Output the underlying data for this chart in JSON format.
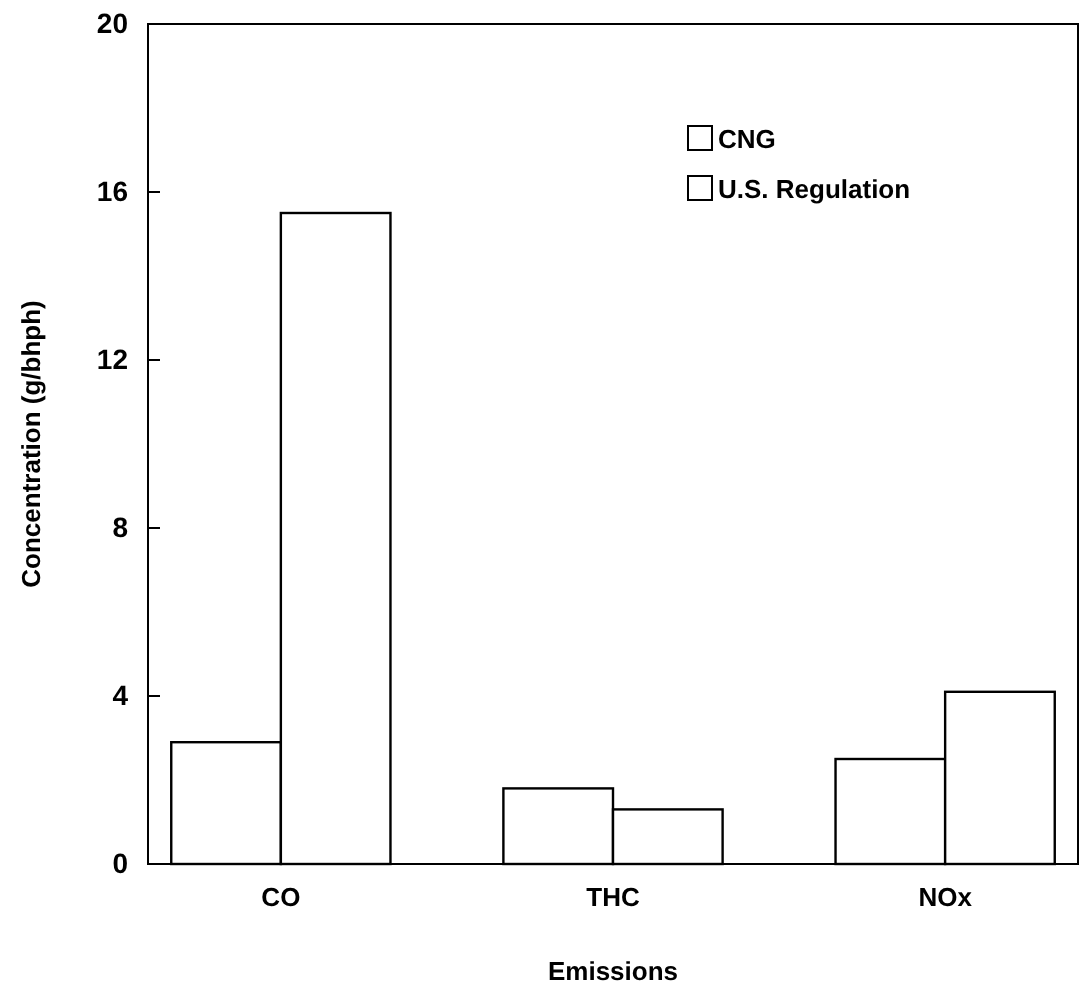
{
  "chart_data": {
    "type": "bar",
    "xlabel": "Emissions",
    "ylabel": "Concentration (g/bhph)",
    "categories": [
      "CO",
      "THC",
      "NOx"
    ],
    "series": [
      {
        "name": "CNG",
        "color": "#ffffff",
        "values": [
          2.9,
          1.8,
          2.5
        ]
      },
      {
        "name": "U.S. Regulation",
        "color": "#ffffff",
        "values": [
          15.5,
          1.3,
          4.1
        ]
      }
    ],
    "ylim": [
      0,
      20
    ],
    "yticks": [
      0,
      4,
      8,
      12,
      16,
      20
    ],
    "legend": "top right",
    "grid": false
  }
}
